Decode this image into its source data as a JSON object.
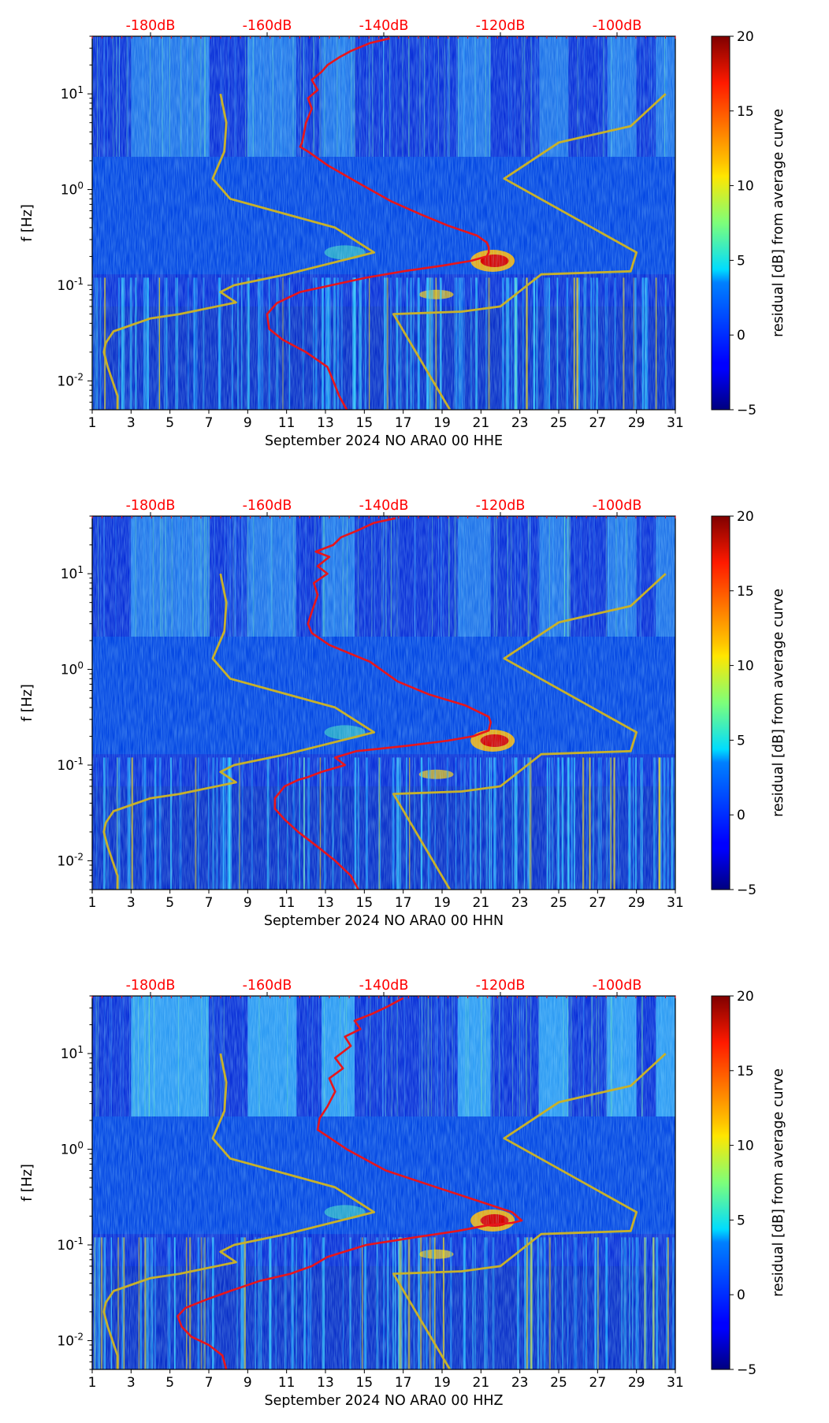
{
  "chart_data": [
    {
      "type": "heatmap",
      "xlabel": "September 2024 NO ARA0 00 HHE",
      "ylabel": "f [Hz]",
      "x_ticks": [
        "1",
        "3",
        "5",
        "7",
        "9",
        "11",
        "13",
        "15",
        "17",
        "19",
        "21",
        "23",
        "25",
        "27",
        "29",
        "31"
      ],
      "xlim": [
        1,
        31
      ],
      "y_scale": "log",
      "ylim": [
        0.005,
        40
      ],
      "y_ticks": [
        {
          "exp": "-2",
          "value": 0.01
        },
        {
          "exp": "-1",
          "value": 0.1
        },
        {
          "exp": "0",
          "value": 1
        },
        {
          "exp": "1",
          "value": 10
        }
      ],
      "top_ticks": [
        "-180dB",
        "-160dB",
        "-140dB",
        "-120dB",
        "-100dB"
      ],
      "colorbar": {
        "label": "residual [dB] from average curve",
        "range": [
          -5,
          20
        ],
        "ticks": [
          "20",
          "15",
          "10",
          "5",
          "0",
          "−5"
        ]
      },
      "series": [
        {
          "color": "#e8151b",
          "x": [
            14.1,
            13.7,
            13.4,
            13.1,
            12.0,
            10.8,
            10.1,
            10.0,
            10.5,
            11.7,
            13.3,
            15.1,
            17.0,
            19.0,
            20.5,
            21.3,
            21.4,
            21.4,
            21.3,
            20.8,
            19.3,
            17.9,
            16.4,
            14.6,
            13.1,
            12.1,
            11.7,
            11.8,
            12.0,
            12.3,
            12.1,
            12.6,
            12.3,
            12.8,
            13.1,
            13.7,
            14.3,
            15.3,
            16.3
          ],
          "y": [
            0.005,
            0.007,
            0.01,
            0.014,
            0.02,
            0.027,
            0.035,
            0.05,
            0.065,
            0.085,
            0.1,
            0.12,
            0.14,
            0.16,
            0.18,
            0.2,
            0.22,
            0.25,
            0.28,
            0.33,
            0.42,
            0.55,
            0.75,
            1.2,
            1.8,
            2.5,
            2.8,
            3.1,
            5,
            7,
            9,
            11,
            14,
            17,
            20,
            24,
            28,
            34,
            38
          ]
        },
        {
          "color": "#c8b12a",
          "x": [
            2.3,
            2.3,
            1.8,
            1.6,
            1.7,
            2.1,
            4.0,
            5.5,
            8.4,
            7.6,
            8.3,
            11.0,
            15.5,
            13.5,
            8.1,
            7.2,
            7.8,
            7.9,
            7.6
          ],
          "y": [
            0.005,
            0.007,
            0.014,
            0.02,
            0.025,
            0.033,
            0.045,
            0.05,
            0.066,
            0.085,
            0.1,
            0.13,
            0.22,
            0.4,
            0.8,
            1.3,
            2.5,
            5,
            10
          ]
        },
        {
          "color": "#c8b12a",
          "x": [
            19.4,
            16.5,
            20.0,
            22.0,
            24.1,
            28.7,
            29.0,
            22.2,
            25.0,
            28.7,
            30.5
          ],
          "y": [
            0.005,
            0.05,
            0.053,
            0.06,
            0.13,
            0.14,
            0.22,
            1.3,
            3.1,
            4.6,
            10
          ]
        }
      ]
    },
    {
      "type": "heatmap",
      "xlabel": "September 2024 NO ARA0 00 HHN",
      "ylabel": "f [Hz]",
      "x_ticks": [
        "1",
        "3",
        "5",
        "7",
        "9",
        "11",
        "13",
        "15",
        "17",
        "19",
        "21",
        "23",
        "25",
        "27",
        "29",
        "31"
      ],
      "xlim": [
        1,
        31
      ],
      "y_scale": "log",
      "ylim": [
        0.005,
        40
      ],
      "y_ticks": [
        {
          "exp": "-2",
          "value": 0.01
        },
        {
          "exp": "-1",
          "value": 0.1
        },
        {
          "exp": "0",
          "value": 1
        },
        {
          "exp": "1",
          "value": 10
        }
      ],
      "top_ticks": [
        "-180dB",
        "-160dB",
        "-140dB",
        "-120dB",
        "-100dB"
      ],
      "colorbar": {
        "label": "residual [dB] from average curve",
        "range": [
          -5,
          20
        ],
        "ticks": [
          "20",
          "15",
          "10",
          "5",
          "0",
          "−5"
        ]
      },
      "series": [
        {
          "color": "#e8151b",
          "x": [
            14.7,
            14.3,
            13.5,
            12.6,
            11.6,
            10.9,
            10.4,
            10.4,
            10.9,
            11.6,
            12.1,
            12.8,
            14.0,
            13.5,
            14.6,
            17.3,
            19.3,
            20.6,
            21.4,
            21.5,
            21.4,
            20.2,
            18.3,
            16.7,
            15.3,
            13.2,
            12.3,
            12.1,
            12.3,
            12.6,
            12.4,
            13.1,
            12.6,
            13.2,
            12.5,
            13.4,
            13.8,
            14.6,
            15.5,
            16.6
          ],
          "y": [
            0.005,
            0.007,
            0.01,
            0.014,
            0.02,
            0.027,
            0.035,
            0.045,
            0.06,
            0.07,
            0.075,
            0.085,
            0.1,
            0.12,
            0.14,
            0.16,
            0.18,
            0.2,
            0.23,
            0.28,
            0.32,
            0.42,
            0.55,
            0.75,
            1.2,
            1.8,
            2.4,
            3,
            4,
            6,
            8,
            10,
            12,
            15,
            17,
            20,
            24,
            28,
            34,
            38
          ]
        },
        {
          "color": "#c8b12a",
          "x": [
            2.3,
            2.3,
            1.8,
            1.6,
            1.7,
            2.1,
            4.0,
            5.5,
            8.4,
            7.6,
            8.3,
            11.0,
            15.5,
            13.5,
            8.1,
            7.2,
            7.8,
            7.9,
            7.6
          ],
          "y": [
            0.005,
            0.007,
            0.014,
            0.02,
            0.025,
            0.033,
            0.045,
            0.05,
            0.066,
            0.085,
            0.1,
            0.13,
            0.22,
            0.4,
            0.8,
            1.3,
            2.5,
            5,
            10
          ]
        },
        {
          "color": "#c8b12a",
          "x": [
            19.4,
            16.5,
            20.0,
            22.0,
            24.1,
            28.7,
            29.0,
            22.2,
            25.0,
            28.7,
            30.5
          ],
          "y": [
            0.005,
            0.05,
            0.053,
            0.06,
            0.13,
            0.14,
            0.22,
            1.3,
            3.1,
            4.6,
            10
          ]
        }
      ]
    },
    {
      "type": "heatmap",
      "xlabel": "September 2024 NO ARA0 00 HHZ",
      "ylabel": "f [Hz]",
      "x_ticks": [
        "1",
        "3",
        "5",
        "7",
        "9",
        "11",
        "13",
        "15",
        "17",
        "19",
        "21",
        "23",
        "25",
        "27",
        "29",
        "31"
      ],
      "xlim": [
        1,
        31
      ],
      "y_scale": "log",
      "ylim": [
        0.005,
        40
      ],
      "y_ticks": [
        {
          "exp": "-2",
          "value": 0.01
        },
        {
          "exp": "-1",
          "value": 0.1
        },
        {
          "exp": "0",
          "value": 1
        },
        {
          "exp": "1",
          "value": 10
        }
      ],
      "top_ticks": [
        "-180dB",
        "-160dB",
        "-140dB",
        "-120dB",
        "-100dB"
      ],
      "colorbar": {
        "label": "residual [dB] from average curve",
        "range": [
          -5,
          20
        ],
        "ticks": [
          "20",
          "15",
          "10",
          "5",
          "0",
          "−5"
        ]
      },
      "series": [
        {
          "color": "#e8151b",
          "x": [
            7.9,
            7.7,
            7.0,
            6.1,
            5.6,
            5.4,
            5.8,
            6.9,
            8.1,
            9.6,
            11.2,
            12.3,
            13.1,
            15.1,
            17.6,
            19.8,
            21.3,
            22.6,
            23.1,
            22.6,
            20.6,
            18.4,
            16.1,
            14.1,
            12.6,
            12.7,
            13.1,
            13.5,
            13.2,
            13.9,
            13.5,
            14.3,
            14.0,
            14.8,
            14.5,
            15.4,
            16.2,
            17.0
          ],
          "y": [
            0.005,
            0.007,
            0.009,
            0.011,
            0.014,
            0.018,
            0.022,
            0.027,
            0.033,
            0.042,
            0.05,
            0.06,
            0.075,
            0.1,
            0.12,
            0.14,
            0.16,
            0.17,
            0.18,
            0.22,
            0.3,
            0.42,
            0.6,
            1.0,
            1.6,
            2.1,
            2.8,
            4,
            5.5,
            7,
            9,
            12,
            15,
            18,
            22,
            26,
            31,
            38
          ]
        },
        {
          "color": "#c8b12a",
          "x": [
            2.3,
            2.3,
            1.8,
            1.6,
            1.7,
            2.1,
            4.0,
            5.5,
            8.4,
            7.6,
            8.3,
            11.0,
            15.5,
            13.5,
            8.1,
            7.2,
            7.8,
            7.9,
            7.6
          ],
          "y": [
            0.005,
            0.007,
            0.014,
            0.02,
            0.025,
            0.033,
            0.045,
            0.05,
            0.066,
            0.085,
            0.1,
            0.13,
            0.22,
            0.4,
            0.8,
            1.3,
            2.5,
            5,
            10
          ]
        },
        {
          "color": "#c8b12a",
          "x": [
            19.4,
            16.5,
            20.0,
            22.0,
            24.1,
            28.7,
            29.0,
            22.2,
            25.0,
            28.7,
            30.5
          ],
          "y": [
            0.005,
            0.05,
            0.053,
            0.06,
            0.13,
            0.14,
            0.22,
            1.3,
            3.1,
            4.6,
            10
          ]
        }
      ]
    }
  ]
}
